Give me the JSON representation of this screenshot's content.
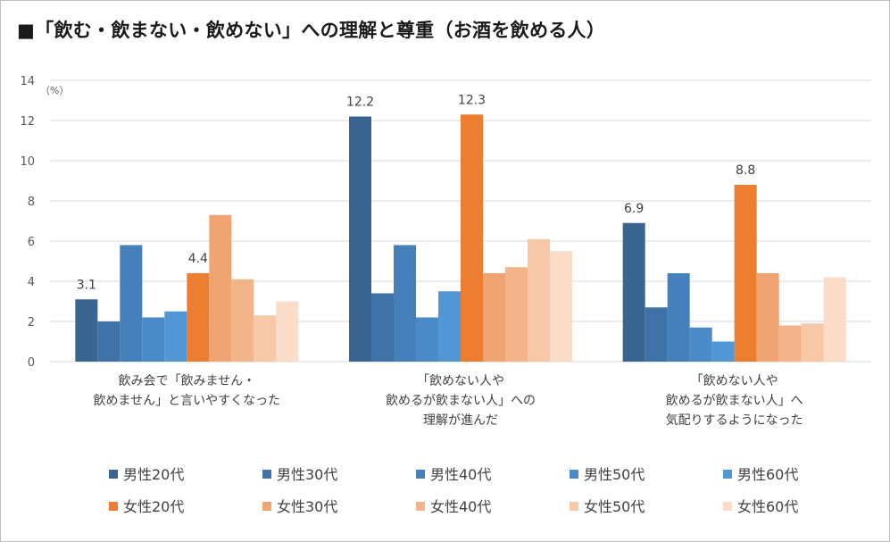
{
  "chart_data": {
    "type": "bar",
    "title": "■「飲む・飲まない・飲めない」への理解と尊重（お酒を飲める人）",
    "unit_label": "（%）",
    "ylim": [
      0,
      14
    ],
    "yticks": [
      0,
      2,
      4,
      6,
      8,
      10,
      12,
      14
    ],
    "grid": true,
    "legend_position": "bottom",
    "categories": [
      [
        "飲み会で「飲みません・",
        "飲めません」と言いやすくなった"
      ],
      [
        "「飲めない人や",
        "飲めるが飲まない人」への",
        "理解が進んだ"
      ],
      [
        "「飲めない人や",
        "飲めるが飲まない人」へ",
        "気配りするようになった"
      ]
    ],
    "series": [
      {
        "name": "男性20代",
        "color": "#3b6591",
        "values": [
          3.1,
          12.2,
          6.9
        ],
        "labels": [
          "3.1",
          "12.2",
          "6.9"
        ]
      },
      {
        "name": "男性30代",
        "color": "#3f72a6",
        "values": [
          2.0,
          3.4,
          2.7
        ],
        "labels": [
          "",
          "",
          ""
        ]
      },
      {
        "name": "男性40代",
        "color": "#4680ba",
        "values": [
          5.8,
          5.8,
          4.4
        ],
        "labels": [
          "",
          "",
          ""
        ]
      },
      {
        "name": "男性50代",
        "color": "#4b8ac8",
        "values": [
          2.2,
          2.2,
          1.7
        ],
        "labels": [
          "",
          "",
          ""
        ]
      },
      {
        "name": "男性60代",
        "color": "#5296d6",
        "values": [
          2.5,
          3.5,
          1.0
        ],
        "labels": [
          "",
          "",
          ""
        ]
      },
      {
        "name": "女性20代",
        "color": "#ed7d31",
        "values": [
          4.4,
          12.3,
          8.8
        ],
        "labels": [
          "4.4",
          "12.3",
          "8.8"
        ]
      },
      {
        "name": "女性30代",
        "color": "#f0a474",
        "values": [
          7.3,
          4.4,
          4.4
        ],
        "labels": [
          "",
          "",
          ""
        ]
      },
      {
        "name": "女性40代",
        "color": "#f3b48a",
        "values": [
          4.1,
          4.7,
          1.8
        ],
        "labels": [
          "",
          "",
          ""
        ]
      },
      {
        "name": "女性50代",
        "color": "#f7c8a8",
        "values": [
          2.3,
          6.1,
          1.9
        ],
        "labels": [
          "",
          "",
          ""
        ]
      },
      {
        "name": "女性60代",
        "color": "#fadcc8",
        "values": [
          3.0,
          5.5,
          4.2
        ],
        "labels": [
          "",
          "",
          ""
        ]
      }
    ]
  }
}
